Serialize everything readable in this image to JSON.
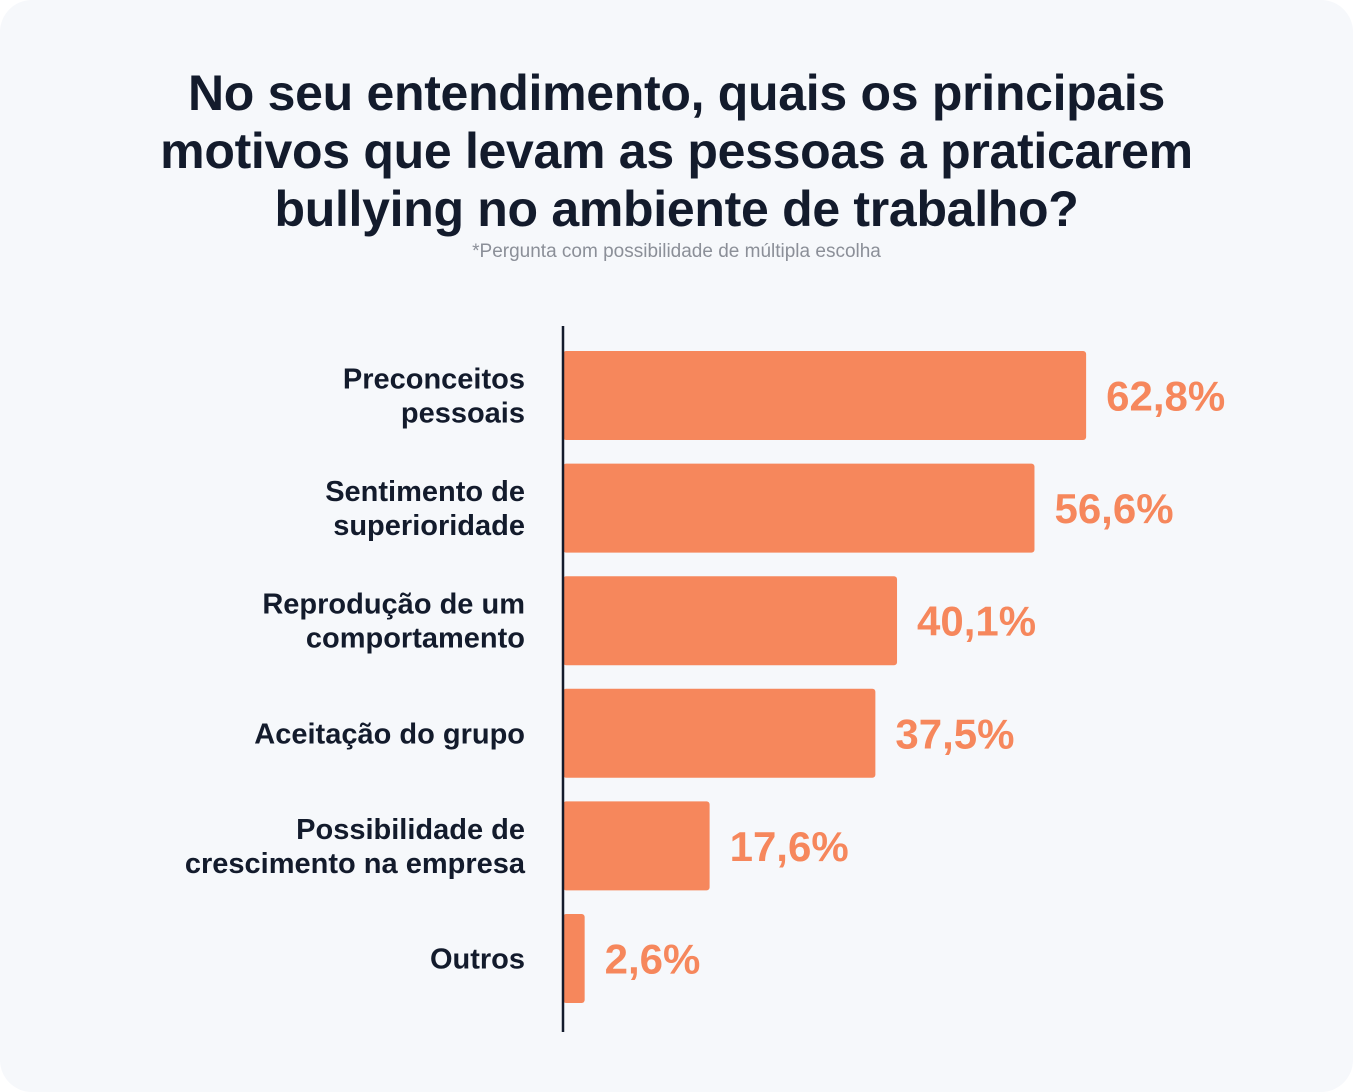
{
  "header": {
    "title_lines": [
      "No seu entendimento, quais os principais",
      "motivos que levam as pessoas a praticarem",
      "bullying no ambiente de trabalho?"
    ],
    "subtitle": "*Pergunta com possibilidade de múltipla escolha"
  },
  "colors": {
    "bar": "#f6875c",
    "value_text": "#f6875c",
    "axis": "#131b2c",
    "background": "#f6f8fb"
  },
  "chart_data": {
    "type": "bar",
    "orientation": "horizontal",
    "title": "No seu entendimento, quais os principais motivos que levam as pessoas a praticarem bullying no ambiente de trabalho?",
    "subtitle": "*Pergunta com possibilidade de múltipla escolha",
    "categories": [
      [
        "Preconceitos",
        "pessoais"
      ],
      [
        "Sentimento de",
        "superioridade"
      ],
      [
        "Reprodução de um",
        "comportamento"
      ],
      [
        "Aceitação do grupo"
      ],
      [
        "Possibilidade de",
        "crescimento na empresa"
      ],
      [
        "Outros"
      ]
    ],
    "values": [
      62.8,
      56.6,
      40.1,
      37.5,
      17.6,
      2.6
    ],
    "value_labels": [
      "62,8%",
      "56,6%",
      "40,1%",
      "37,5%",
      "17,6%",
      "2,6%"
    ],
    "unit": "%",
    "xlim": [
      0,
      100
    ],
    "grid": false,
    "legend": "none"
  }
}
